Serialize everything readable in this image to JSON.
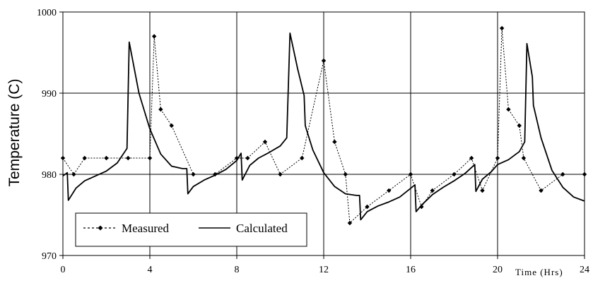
{
  "chart_data": {
    "type": "line",
    "xlabel": "Time (Hrs)",
    "ylabel": "Temperature (C)",
    "xlim": [
      0,
      24
    ],
    "ylim": [
      970,
      1000
    ],
    "x_ticks": [
      "0",
      "4",
      "8",
      "12",
      "16",
      "20",
      "24"
    ],
    "y_ticks": [
      "970",
      "980",
      "990",
      "1000"
    ],
    "grid": true,
    "legend_position": "bottom-left",
    "series": [
      {
        "name": "Measured",
        "style": "dotted-diamond",
        "color": "#000000",
        "points": [
          [
            0,
            982
          ],
          [
            0.5,
            980
          ],
          [
            1,
            982
          ],
          [
            2,
            982
          ],
          [
            3,
            982
          ],
          [
            4,
            982
          ],
          [
            4.2,
            997
          ],
          [
            4.5,
            988
          ],
          [
            5,
            986
          ],
          [
            6,
            980
          ],
          [
            7,
            980
          ],
          [
            8,
            982
          ],
          [
            8.5,
            982
          ],
          [
            9.3,
            984
          ],
          [
            10,
            980
          ],
          [
            11,
            982
          ],
          [
            12,
            994
          ],
          [
            12.5,
            984
          ],
          [
            13,
            980
          ],
          [
            13.2,
            974
          ],
          [
            14,
            976
          ],
          [
            15,
            978
          ],
          [
            16,
            980
          ],
          [
            16.5,
            976
          ],
          [
            17,
            978
          ],
          [
            18,
            980
          ],
          [
            18.8,
            982
          ],
          [
            19.3,
            978
          ],
          [
            20,
            982
          ],
          [
            20.2,
            998
          ],
          [
            20.5,
            988
          ],
          [
            21,
            986
          ],
          [
            21.2,
            982
          ],
          [
            22,
            978
          ],
          [
            23,
            980
          ],
          [
            24,
            980
          ]
        ]
      },
      {
        "name": "Calculated",
        "style": "solid",
        "color": "#000000",
        "points": [
          [
            0,
            979.8
          ],
          [
            0.2,
            980.2
          ],
          [
            0.25,
            976.8
          ],
          [
            0.6,
            978.3
          ],
          [
            1,
            979.2
          ],
          [
            1.5,
            979.8
          ],
          [
            2,
            980.4
          ],
          [
            2.5,
            981.4
          ],
          [
            2.95,
            983.2
          ],
          [
            3.05,
            996.3
          ],
          [
            3.5,
            990
          ],
          [
            4,
            985.6
          ],
          [
            4.5,
            982.5
          ],
          [
            5,
            981
          ],
          [
            5.5,
            980.7
          ],
          [
            5.7,
            980.7
          ],
          [
            5.75,
            977.6
          ],
          [
            6,
            978.5
          ],
          [
            6.5,
            979.3
          ],
          [
            7,
            979.9
          ],
          [
            7.5,
            980.6
          ],
          [
            8,
            981.7
          ],
          [
            8.2,
            982.6
          ],
          [
            8.25,
            979.3
          ],
          [
            8.6,
            981.1
          ],
          [
            9,
            982
          ],
          [
            9.5,
            982.7
          ],
          [
            10,
            983.5
          ],
          [
            10.3,
            984.5
          ],
          [
            10.45,
            997.4
          ],
          [
            10.8,
            993
          ],
          [
            11.1,
            989.7
          ],
          [
            11.15,
            986
          ],
          [
            11.5,
            983
          ],
          [
            12,
            980.2
          ],
          [
            12.5,
            978.5
          ],
          [
            13,
            977.6
          ],
          [
            13.5,
            977.4
          ],
          [
            13.65,
            977.4
          ],
          [
            13.7,
            974.4
          ],
          [
            14,
            975.4
          ],
          [
            14.5,
            976.1
          ],
          [
            15,
            976.6
          ],
          [
            15.5,
            977.2
          ],
          [
            16.2,
            978.7
          ],
          [
            16.25,
            975.4
          ],
          [
            16.5,
            976.2
          ],
          [
            17,
            977.5
          ],
          [
            17.5,
            978.4
          ],
          [
            18,
            979.2
          ],
          [
            18.5,
            980.1
          ],
          [
            18.95,
            981.2
          ],
          [
            19,
            977.9
          ],
          [
            19.3,
            979.4
          ],
          [
            19.7,
            980.3
          ],
          [
            20,
            981.2
          ],
          [
            20.5,
            981.8
          ],
          [
            21,
            982.8
          ],
          [
            21.25,
            984
          ],
          [
            21.35,
            996.1
          ],
          [
            21.6,
            992
          ],
          [
            21.65,
            988.5
          ],
          [
            22,
            984.5
          ],
          [
            22.5,
            980.5
          ],
          [
            23,
            978.4
          ],
          [
            23.5,
            977.2
          ],
          [
            24,
            976.7
          ]
        ]
      }
    ]
  }
}
